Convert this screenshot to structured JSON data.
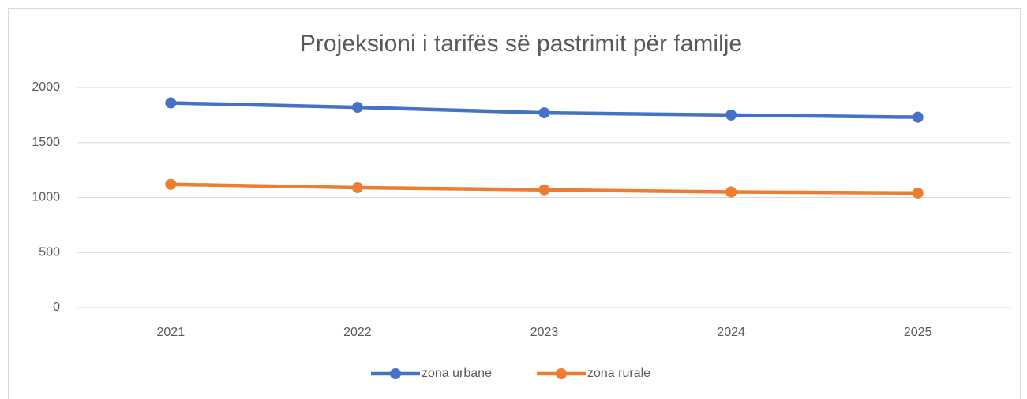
{
  "chart_data": {
    "type": "line",
    "title": "Projeksioni i tarifës së pastrimit për familje",
    "categories": [
      "2021",
      "2022",
      "2023",
      "2024",
      "2025"
    ],
    "series": [
      {
        "name": "zona urbane",
        "color": "#4472c4",
        "values": [
          1860,
          1820,
          1770,
          1750,
          1730
        ]
      },
      {
        "name": "zona rurale",
        "color": "#ed7d31",
        "values": [
          1120,
          1090,
          1070,
          1050,
          1040
        ]
      }
    ],
    "ylim": [
      0,
      2000
    ],
    "yticks": [
      0,
      500,
      1000,
      1500,
      2000
    ],
    "grid": true,
    "legend": "bottom"
  }
}
